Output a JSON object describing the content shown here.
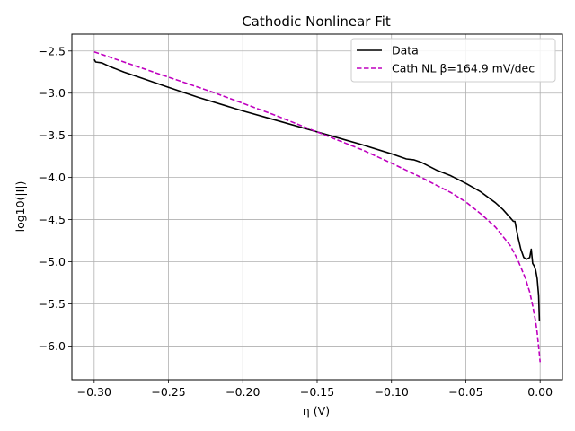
{
  "chart_data": {
    "type": "line",
    "title": "Cathodic Nonlinear Fit",
    "xlabel": "η (V)",
    "ylabel": "log10(|I|)",
    "xlim": [
      -0.315,
      0.015
    ],
    "ylim": [
      -6.4,
      -2.3
    ],
    "xticks": [
      -0.3,
      -0.25,
      -0.2,
      -0.15,
      -0.1,
      -0.05,
      0.0
    ],
    "xtick_labels": [
      "−0.30",
      "−0.25",
      "−0.20",
      "−0.15",
      "−0.10",
      "−0.05",
      "0.00"
    ],
    "yticks": [
      -2.5,
      -3.0,
      -3.5,
      -4.0,
      -4.5,
      -5.0,
      -5.5,
      -6.0
    ],
    "ytick_labels": [
      "−2.5",
      "−3.0",
      "−3.5",
      "−4.0",
      "−4.5",
      "−5.0",
      "−5.5",
      "−6.0"
    ],
    "grid": true,
    "legend_position": "top-right",
    "series": [
      {
        "name": "Data",
        "color": "#000000",
        "style": "solid",
        "x": [
          -0.3,
          -0.299,
          -0.295,
          -0.29,
          -0.28,
          -0.27,
          -0.25,
          -0.23,
          -0.2,
          -0.18,
          -0.15,
          -0.12,
          -0.1,
          -0.09,
          -0.085,
          -0.08,
          -0.07,
          -0.06,
          -0.05,
          -0.04,
          -0.03,
          -0.025,
          -0.02,
          -0.018,
          -0.017,
          -0.015,
          -0.013,
          -0.011,
          -0.009,
          -0.007,
          -0.006,
          -0.005,
          -0.004,
          -0.003,
          -0.002,
          -0.001,
          -0.0005
        ],
        "y": [
          -2.6,
          -2.63,
          -2.64,
          -2.68,
          -2.75,
          -2.81,
          -2.93,
          -3.05,
          -3.21,
          -3.31,
          -3.46,
          -3.61,
          -3.72,
          -3.78,
          -3.79,
          -3.82,
          -3.91,
          -3.98,
          -4.07,
          -4.17,
          -4.3,
          -4.38,
          -4.48,
          -4.52,
          -4.52,
          -4.7,
          -4.85,
          -4.95,
          -4.97,
          -4.95,
          -4.85,
          -5.02,
          -5.05,
          -5.1,
          -5.2,
          -5.4,
          -5.7
        ]
      },
      {
        "name": "Cath NL β=164.9 mV/dec",
        "color": "#bf00bf",
        "style": "dashed",
        "x": [
          -0.3,
          -0.28,
          -0.26,
          -0.24,
          -0.22,
          -0.2,
          -0.18,
          -0.16,
          -0.14,
          -0.12,
          -0.1,
          -0.08,
          -0.06,
          -0.05,
          -0.04,
          -0.03,
          -0.02,
          -0.015,
          -0.01,
          -0.007,
          -0.005,
          -0.003,
          -0.002,
          -0.001,
          -0.0005,
          0.0
        ],
        "y": [
          -2.51,
          -2.63,
          -2.75,
          -2.87,
          -2.99,
          -3.12,
          -3.25,
          -3.39,
          -3.53,
          -3.67,
          -3.83,
          -4.0,
          -4.18,
          -4.29,
          -4.43,
          -4.59,
          -4.81,
          -4.98,
          -5.19,
          -5.36,
          -5.52,
          -5.71,
          -5.84,
          -6.01,
          -6.1,
          -6.19
        ]
      }
    ]
  }
}
